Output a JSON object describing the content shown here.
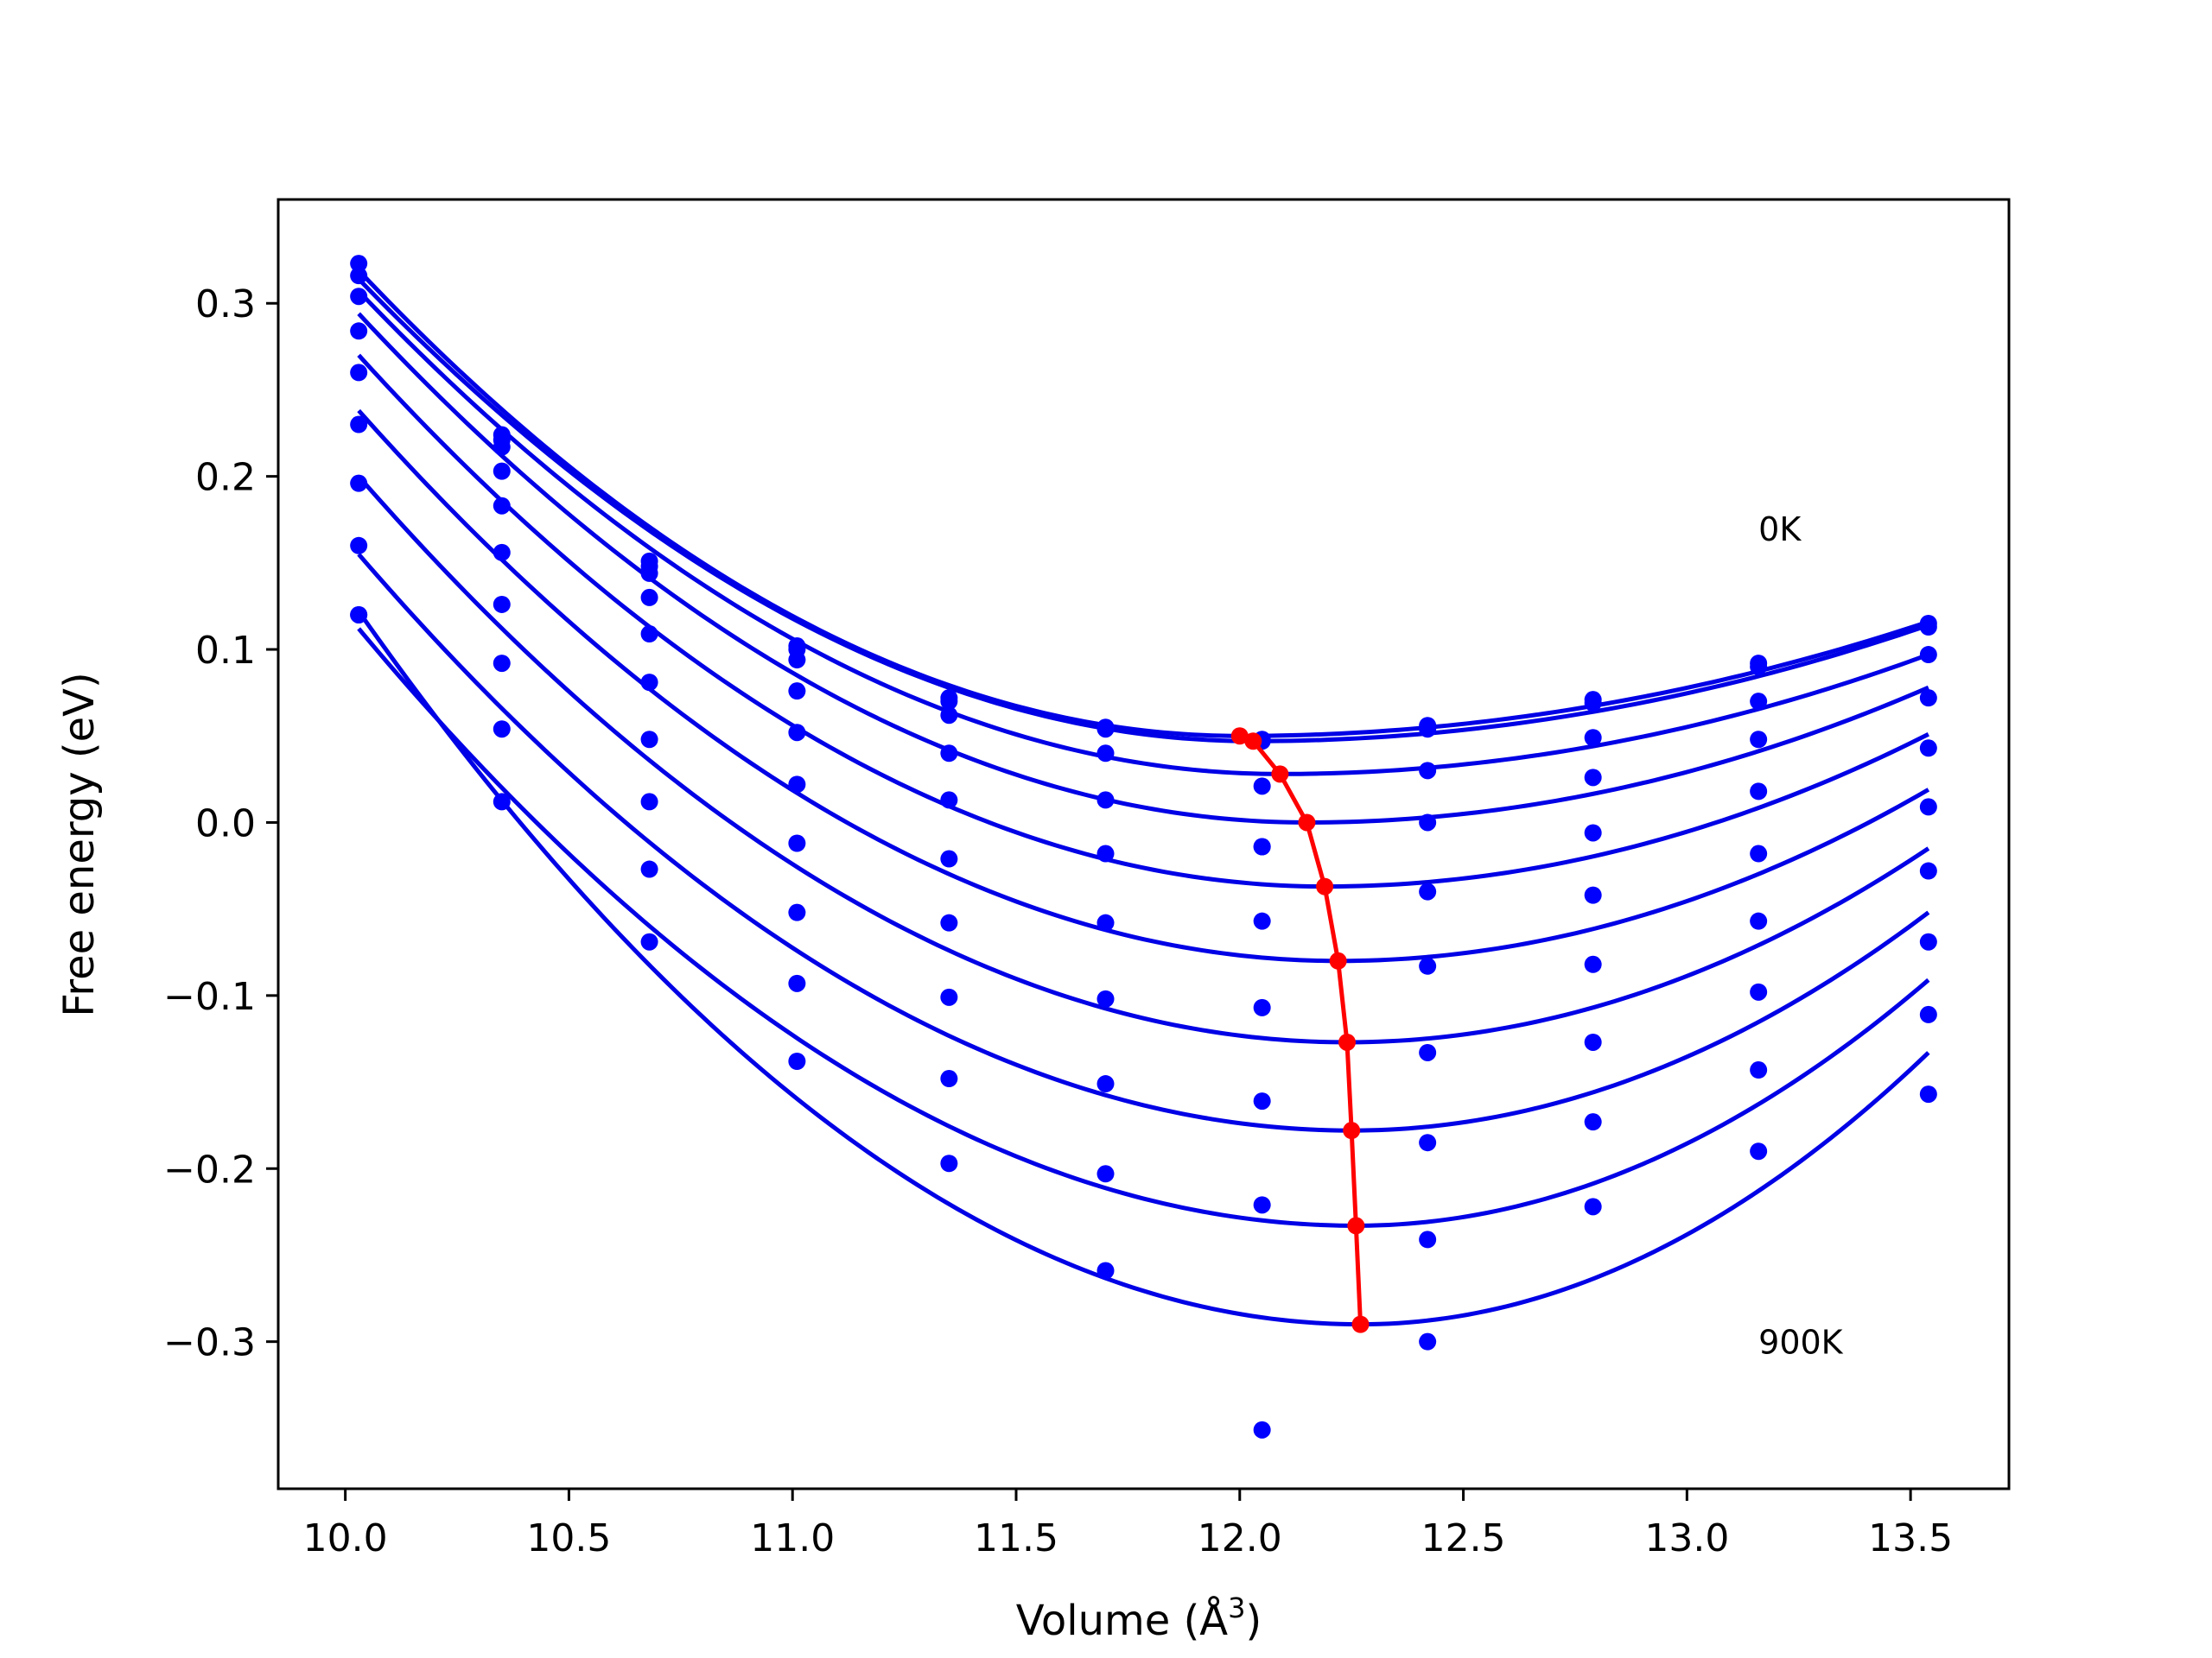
{
  "chart_data": {
    "type": "scatter",
    "title": "",
    "xlabel": "Volume (Å",
    "xlabel_sup": "3",
    "xlabel_end": ")",
    "ylabel": "Free energy (eV)",
    "xlim": [
      9.85,
      13.72
    ],
    "ylim": [
      -0.385,
      0.36
    ],
    "xticks": [
      10.0,
      10.5,
      11.0,
      11.5,
      12.0,
      12.5,
      13.0,
      13.5
    ],
    "xtick_labels": [
      "10.0",
      "10.5",
      "11.0",
      "11.5",
      "12.0",
      "12.5",
      "13.0",
      "13.5"
    ],
    "yticks": [
      0.3,
      0.2,
      0.1,
      0.0,
      -0.1,
      -0.2,
      -0.3
    ],
    "ytick_labels": [
      "0.3",
      "0.2",
      "0.1",
      "0.0",
      "−0.1",
      "−0.2",
      "−0.3"
    ],
    "grid": false,
    "annotations": [
      {
        "text": "0K",
        "x": 13.16,
        "y": 0.17
      },
      {
        "text": "900K",
        "x": 13.16,
        "y": -0.3
      }
    ],
    "colors": {
      "points": "#0000ff",
      "fits": "#0000e6",
      "minima": "#ff0000"
    },
    "volumes": [
      10.03,
      10.35,
      10.68,
      11.01,
      11.35,
      11.7,
      12.05,
      12.42,
      12.79,
      13.16,
      13.54
    ],
    "series": [
      {
        "points": [
          0.323,
          0.224,
          0.151,
          0.102,
          0.072,
          0.055,
          0.048,
          0.056,
          0.071,
          0.092,
          0.115
        ],
        "fit": {
          "vmin": 12.0,
          "fmin": 0.05,
          "coef": [
            0.122,
            0.02
          ],
          "start": 0.319,
          "end": 0.116
        }
      },
      {
        "points": [
          0.316,
          0.221,
          0.148,
          0.1,
          0.07,
          0.054,
          0.047,
          0.054,
          0.069,
          0.09,
          0.113
        ],
        "fit": {
          "vmin": 12.03,
          "fmin": 0.047,
          "coef": [
            0.122,
            0.02
          ],
          "start": 0.314,
          "end": 0.114
        }
      },
      {
        "points": [
          0.304,
          0.217,
          0.144,
          0.094,
          0.062,
          0.04,
          0.021,
          0.03,
          0.049,
          0.07,
          0.097
        ],
        "fit": {
          "vmin": 12.09,
          "fmin": 0.028,
          "coef": [
            0.122,
            0.02
          ],
          "start": 0.307,
          "end": 0.097
        }
      },
      {
        "points": [
          0.284,
          0.203,
          0.13,
          0.076,
          0.04,
          0.013,
          -0.014,
          0.0,
          0.026,
          0.048,
          0.072
        ],
        "fit": {
          "vmin": 12.15,
          "fmin": 0.0,
          "coef": [
            0.122,
            0.02
          ],
          "start": 0.294,
          "end": 0.078
        }
      },
      {
        "points": [
          0.26,
          0.183,
          0.109,
          0.052,
          0.013,
          -0.018,
          -0.014,
          -0.04,
          -0.006,
          0.018,
          0.043
        ],
        "fit": {
          "vmin": 12.19,
          "fmin": -0.037,
          "coef": [
            0.122,
            0.02
          ],
          "start": 0.27,
          "end": 0.051
        }
      },
      {
        "points": [
          0.23,
          0.156,
          0.081,
          0.022,
          -0.021,
          -0.058,
          -0.057,
          -0.083,
          -0.042,
          -0.018,
          0.009
        ],
        "fit": {
          "vmin": 12.22,
          "fmin": -0.08,
          "coef": [
            0.122,
            0.02
          ],
          "start": 0.238,
          "end": 0.019
        }
      },
      {
        "points": [
          0.196,
          0.126,
          0.048,
          -0.012,
          -0.058,
          -0.102,
          -0.107,
          -0.133,
          -0.082,
          -0.057,
          -0.028
        ],
        "fit": {
          "vmin": 12.24,
          "fmin": -0.127,
          "coef": [
            0.122,
            0.02
          ],
          "start": 0.2,
          "end": -0.015
        }
      },
      {
        "points": [
          0.16,
          0.092,
          0.012,
          -0.052,
          -0.101,
          -0.151,
          -0.161,
          -0.185,
          -0.127,
          -0.098,
          -0.069
        ],
        "fit": {
          "vmin": 12.25,
          "fmin": -0.178,
          "coef": [
            0.122,
            0.02
          ],
          "start": 0.155,
          "end": -0.052
        }
      },
      {
        "points": [
          0.12,
          0.054,
          -0.027,
          -0.093,
          -0.148,
          -0.203,
          -0.221,
          -0.241,
          -0.173,
          -0.143,
          -0.111
        ],
        "fit": {
          "vmin": 12.26,
          "fmin": -0.233,
          "coef": [
            0.122,
            0.02
          ],
          "start": 0.112,
          "end": -0.091
        }
      },
      {
        "points": [
          0.12,
          0.012,
          -0.069,
          -0.138,
          -0.197,
          -0.259,
          -0.351,
          -0.3,
          -0.222,
          -0.19,
          -0.157
        ],
        "fit": {
          "vmin": 12.27,
          "fmin": -0.29,
          "coef": [
            0.122,
            0.02
          ],
          "start": 0.122,
          "end": -0.133
        }
      }
    ],
    "minima_curve": {
      "x": [
        12.0,
        12.03,
        12.09,
        12.15,
        12.19,
        12.22,
        12.24,
        12.25,
        12.26,
        12.27
      ],
      "y": [
        0.05,
        0.047,
        0.028,
        0.0,
        -0.037,
        -0.08,
        -0.127,
        -0.178,
        -0.233,
        -0.29
      ]
    }
  }
}
